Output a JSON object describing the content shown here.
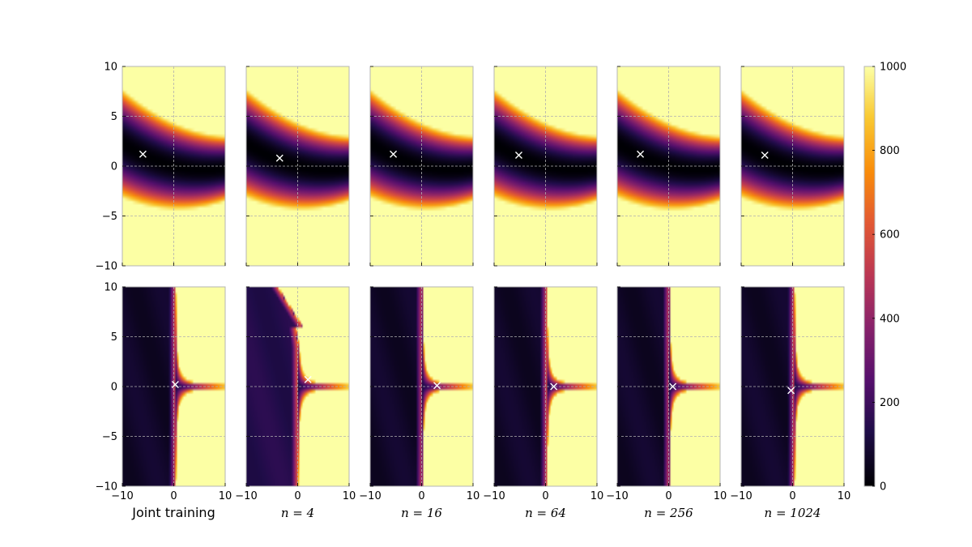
{
  "chart_data": {
    "type": "heatmap",
    "colormap": "inferno",
    "xlim": [
      -10,
      10
    ],
    "ylim": [
      -10,
      10
    ],
    "x_ticks": [
      -10,
      0,
      10
    ],
    "y_ticks": [
      -10,
      -5,
      0,
      5,
      10
    ],
    "tick_labels_x": [
      "−10",
      "0",
      "10"
    ],
    "tick_labels_y": [
      "−10",
      "−5",
      "0",
      "5",
      "10"
    ],
    "grid": true,
    "colorbar": {
      "range": [
        0,
        1000
      ],
      "ticks": [
        0,
        200,
        400,
        600,
        800,
        1000
      ],
      "tick_labels": [
        "0",
        "200",
        "400",
        "600",
        "800",
        "1000"
      ]
    },
    "columns": [
      "Joint training",
      "n = 4",
      "n = 16",
      "n = 64",
      "n = 256",
      "n = 1024"
    ],
    "column_label_math": [
      false,
      true,
      true,
      true,
      true,
      true
    ],
    "rows": 2,
    "minima": [
      [
        {
          "x": -6,
          "y": 1.2
        },
        {
          "x": -3.5,
          "y": 0.8
        },
        {
          "x": -5.5,
          "y": 1.2
        },
        {
          "x": -5.2,
          "y": 1.1
        },
        {
          "x": -5.5,
          "y": 1.2
        },
        {
          "x": -5.4,
          "y": 1.1
        }
      ],
      [
        {
          "x": 0.3,
          "y": 0.2
        },
        {
          "x": 2.0,
          "y": 0.7
        },
        {
          "x": 3.0,
          "y": 0.1
        },
        {
          "x": 1.6,
          "y": 0.0
        },
        {
          "x": 0.8,
          "y": 0.0
        },
        {
          "x": -0.3,
          "y": -0.4
        }
      ]
    ],
    "boundary_x": [
      0.3,
      0.0,
      0.1,
      0.2,
      0.1,
      0.3
    ]
  }
}
